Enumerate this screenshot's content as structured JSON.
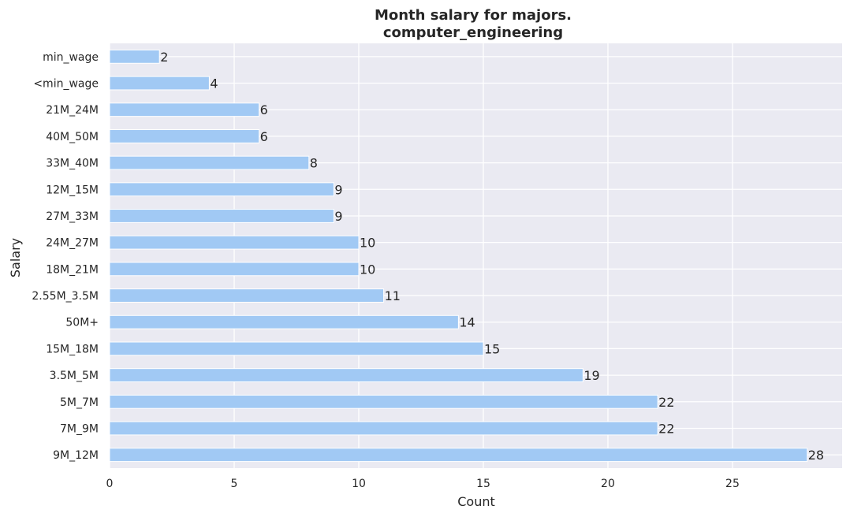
{
  "chart_data": {
    "type": "bar",
    "orientation": "horizontal",
    "title_line1": "Month salary for majors.",
    "title_line2": "computer_engineering",
    "xlabel": "Count",
    "ylabel": "Salary",
    "xlim": [
      0,
      29.4
    ],
    "xticks": [
      0,
      5,
      10,
      15,
      20,
      25
    ],
    "grid": true,
    "background_color": "#eaeaf2",
    "bar_color": "#a1c9f4",
    "categories": [
      "min_wage",
      "<min_wage",
      "21M_24M",
      "40M_50M",
      "33M_40M",
      "12M_15M",
      "27M_33M",
      "24M_27M",
      "18M_21M",
      "2.55M_3.5M",
      "50M+",
      "15M_18M",
      "3.5M_5M",
      "5M_7M",
      "7M_9M",
      "9M_12M"
    ],
    "values": [
      2,
      4,
      6,
      6,
      8,
      9,
      9,
      10,
      10,
      11,
      14,
      15,
      19,
      22,
      22,
      28
    ]
  }
}
